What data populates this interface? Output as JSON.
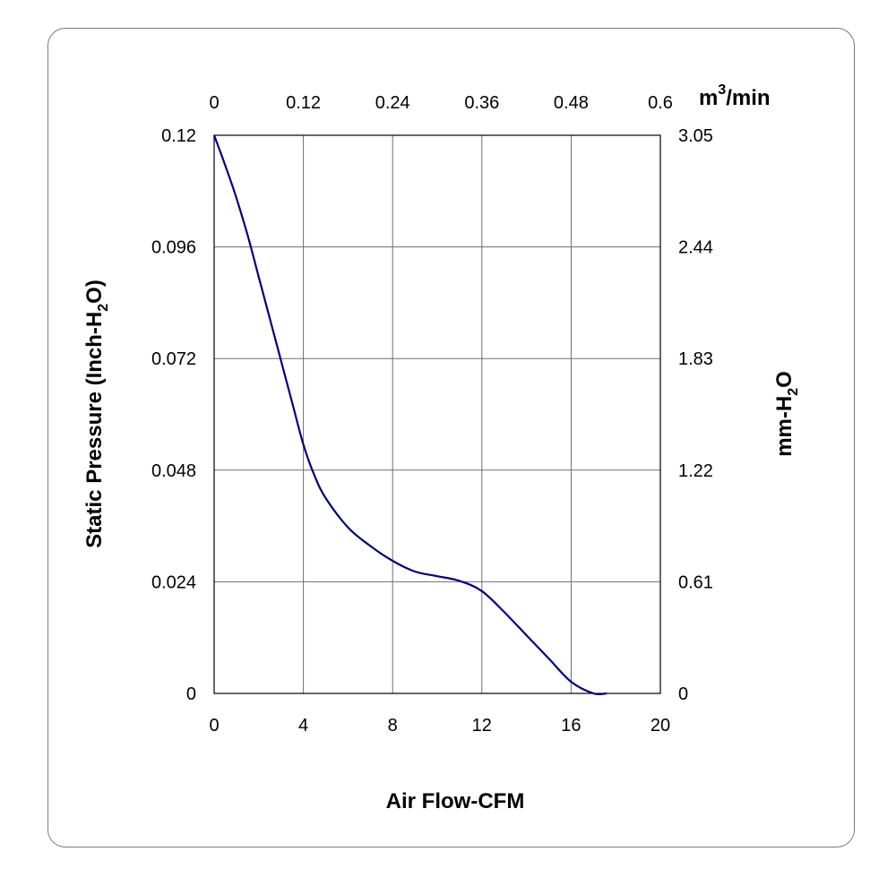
{
  "chart_data": {
    "type": "line",
    "xlabel": "Air Flow-CFM",
    "ylabel": "Static Pressure (Inch-H2O)",
    "ylabel_parts": [
      "Static Pressure (Inch-H",
      "2",
      "O)"
    ],
    "x2label_parts": [
      "m",
      "3",
      "/min"
    ],
    "y2label_parts": [
      "mm-H",
      "2",
      "O"
    ],
    "xlim": [
      0,
      20
    ],
    "ylim": [
      0,
      0.12
    ],
    "x_ticks": [
      "0",
      "4",
      "8",
      "12",
      "16",
      "20"
    ],
    "y_ticks": [
      "0",
      "0.024",
      "0.048",
      "0.072",
      "0.096",
      "0.12"
    ],
    "x2_ticks": [
      "0",
      "0.12",
      "0.24",
      "0.36",
      "0.48",
      "0.6"
    ],
    "y2_ticks": [
      "0",
      "0.61",
      "1.22",
      "1.83",
      "2.44",
      "3.05"
    ],
    "grid": true,
    "line_color": "#000080",
    "series": [
      {
        "x": [
          0,
          0.5,
          1,
          1.5,
          2,
          2.5,
          3,
          3.5,
          4,
          4.5,
          5,
          6,
          7,
          8,
          9,
          10,
          11,
          12,
          13,
          14,
          15,
          16,
          17,
          17.6
        ],
        "y": [
          0.12,
          0.1135,
          0.1065,
          0.0985,
          0.0895,
          0.0805,
          0.0715,
          0.0625,
          0.0535,
          0.0468,
          0.042,
          0.0357,
          0.0317,
          0.0285,
          0.0262,
          0.0252,
          0.0242,
          0.022,
          0.0175,
          0.0125,
          0.0075,
          0.0025,
          -0.002,
          -0.005
        ]
      }
    ]
  }
}
